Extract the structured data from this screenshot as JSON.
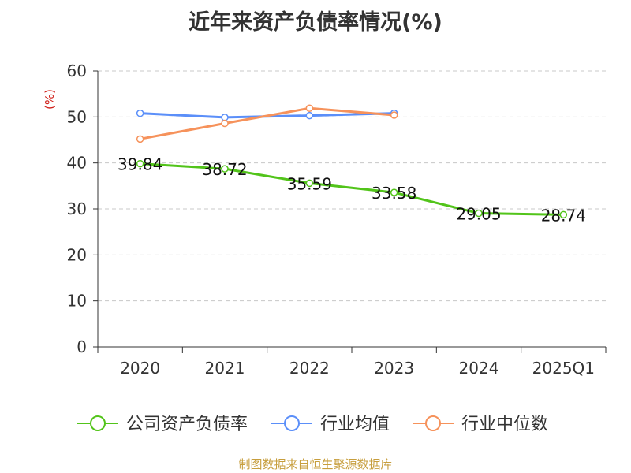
{
  "chart_data": {
    "type": "line",
    "title": "近年来资产负债率情况(%)",
    "ylabel": "(%)",
    "xlabel": "",
    "categories": [
      "2020",
      "2021",
      "2022",
      "2023",
      "2024",
      "2025Q1"
    ],
    "ylim": [
      0,
      60
    ],
    "yticks": [
      0,
      10,
      20,
      30,
      40,
      50,
      60
    ],
    "grid": true,
    "legend_position": "bottom",
    "series": [
      {
        "name": "公司资产负债率",
        "color": "#52c41a",
        "values": [
          39.84,
          38.72,
          35.59,
          33.58,
          29.05,
          28.74
        ],
        "labels": [
          "39.84",
          "38.72",
          "35.59",
          "33.58",
          "29.05",
          "28.74"
        ]
      },
      {
        "name": "行业均值",
        "color": "#5b8ff9",
        "values": [
          50.8,
          49.9,
          50.3,
          50.8,
          null,
          null
        ]
      },
      {
        "name": "行业中位数",
        "color": "#f6925b",
        "values": [
          45.2,
          48.6,
          51.9,
          50.4,
          null,
          null
        ]
      }
    ]
  },
  "source": "制图数据来自恒生聚源数据库"
}
